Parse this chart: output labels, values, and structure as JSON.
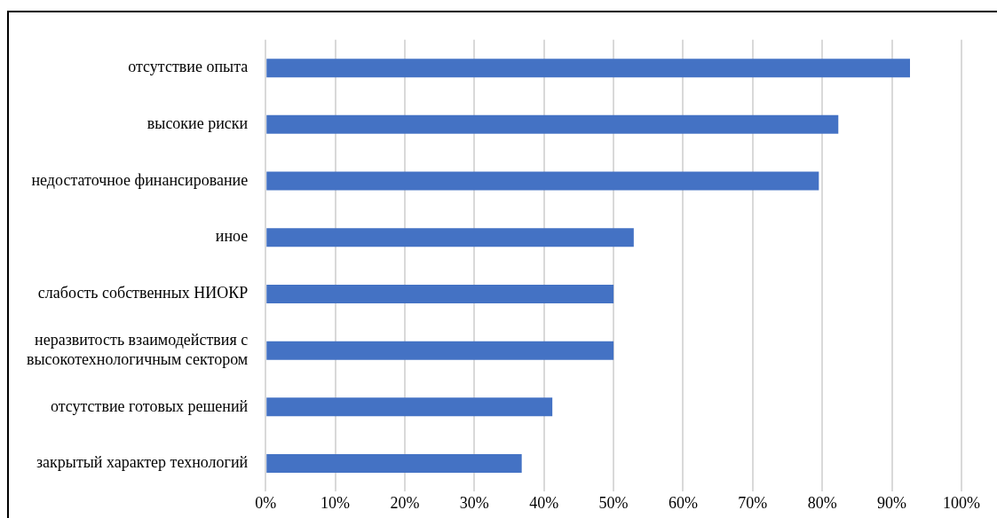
{
  "chart_data": {
    "type": "bar",
    "orientation": "horizontal",
    "categories": [
      "отсутствие опыта",
      "высокие риски",
      "недостаточное финансирование",
      "иное",
      "слабость собственных НИОКР",
      "неразвитость взаимодействия с\nвысокотехнологичным сектором",
      "отсутствие готовых решений",
      "закрытый характер технологий"
    ],
    "values": [
      92.6,
      82.3,
      79.5,
      52.9,
      50,
      50,
      41.2,
      36.8
    ],
    "color": "#4472c4",
    "xlim": [
      0,
      100
    ],
    "xticks": [
      {
        "value": 0,
        "label": "0%"
      },
      {
        "value": 10,
        "label": "10%"
      },
      {
        "value": 20,
        "label": "20%"
      },
      {
        "value": 30,
        "label": "30%"
      },
      {
        "value": 40,
        "label": "40%"
      },
      {
        "value": 50,
        "label": "50%"
      },
      {
        "value": 60,
        "label": "60%"
      },
      {
        "value": 70,
        "label": "70%"
      },
      {
        "value": 80,
        "label": "80%"
      },
      {
        "value": 90,
        "label": "90%"
      },
      {
        "value": 100,
        "label": "100%"
      }
    ],
    "grid": "x"
  }
}
